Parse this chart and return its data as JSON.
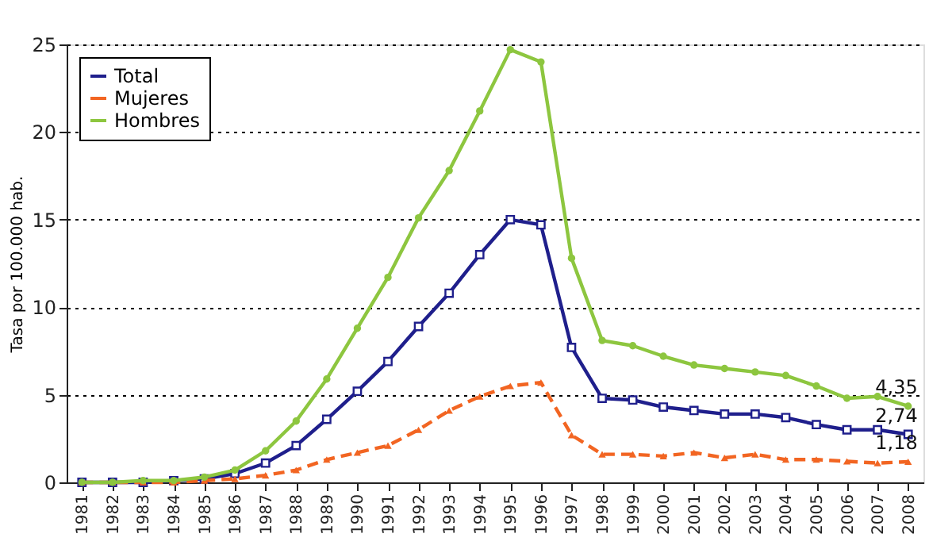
{
  "chart_data": {
    "type": "line",
    "ylabel": "Tasa por 100.000 hab.",
    "categories": [
      "1981",
      "1982",
      "1983",
      "1984",
      "1985",
      "1986",
      "1987",
      "1988",
      "1989",
      "1990",
      "1991",
      "1992",
      "1993",
      "1994",
      "1995",
      "1996",
      "1997",
      "1998",
      "1999",
      "2000",
      "2001",
      "2002",
      "2003",
      "2004",
      "2005",
      "2006",
      "2007",
      "2008"
    ],
    "series": [
      {
        "name": "Total",
        "color": "#1f1f8c",
        "marker": "square",
        "line_style": "solid",
        "values": [
          0,
          0,
          0,
          0.1,
          0.2,
          0.5,
          1.1,
          2.1,
          3.6,
          5.2,
          6.9,
          8.9,
          10.8,
          13.0,
          15.0,
          14.7,
          7.7,
          4.8,
          4.7,
          4.3,
          4.1,
          3.9,
          3.9,
          3.7,
          3.3,
          3.0,
          3.0,
          2.74
        ],
        "value_labels": [
          null,
          null,
          null,
          null,
          null,
          null,
          null,
          null,
          null,
          null,
          null,
          null,
          null,
          null,
          null,
          null,
          null,
          null,
          null,
          null,
          null,
          null,
          null,
          null,
          null,
          null,
          null,
          "2,74"
        ]
      },
      {
        "name": "Mujeres",
        "color": "#f26522",
        "marker": "triangle",
        "line_style": "dashed",
        "values": [
          0,
          0,
          0,
          0,
          0.1,
          0.2,
          0.4,
          0.7,
          1.3,
          1.7,
          2.1,
          3.0,
          4.1,
          4.9,
          5.5,
          5.7,
          2.7,
          1.6,
          1.6,
          1.5,
          1.7,
          1.4,
          1.6,
          1.3,
          1.3,
          1.2,
          1.1,
          1.18
        ],
        "value_labels": [
          null,
          null,
          null,
          null,
          null,
          null,
          null,
          null,
          null,
          null,
          null,
          null,
          null,
          null,
          null,
          null,
          null,
          null,
          null,
          null,
          null,
          null,
          null,
          null,
          null,
          null,
          null,
          "1,18"
        ]
      },
      {
        "name": "Hombres",
        "color": "#8dc63f",
        "marker": "circle",
        "line_style": "solid",
        "values": [
          0,
          0,
          0.1,
          0.1,
          0.3,
          0.7,
          1.8,
          3.5,
          5.9,
          8.8,
          11.7,
          15.1,
          17.8,
          21.2,
          24.7,
          24.0,
          12.8,
          8.1,
          7.8,
          7.2,
          6.7,
          6.5,
          6.3,
          6.1,
          5.5,
          4.8,
          4.9,
          4.35
        ],
        "value_labels": [
          null,
          null,
          null,
          null,
          null,
          null,
          null,
          null,
          null,
          null,
          null,
          null,
          null,
          null,
          null,
          null,
          null,
          null,
          null,
          null,
          null,
          null,
          null,
          null,
          null,
          null,
          null,
          "4,35"
        ]
      }
    ],
    "ylim": [
      0,
      25
    ],
    "yticks": [
      0,
      5,
      10,
      15,
      20,
      25
    ],
    "grid": "y",
    "legend": "top left"
  }
}
